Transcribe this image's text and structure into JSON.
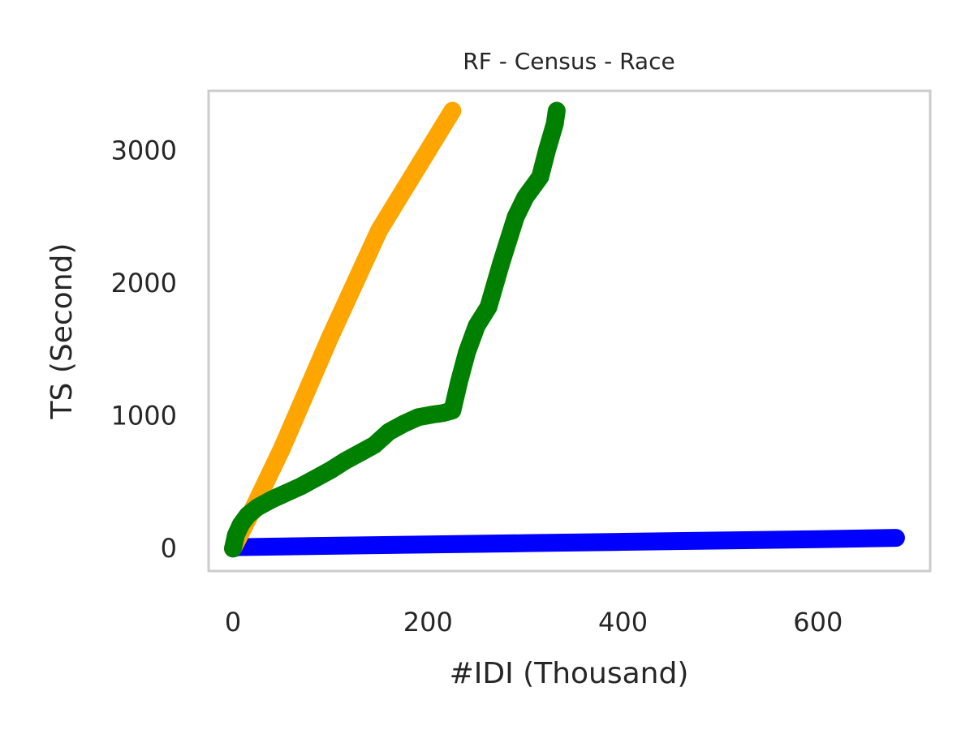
{
  "chart_data": {
    "type": "line",
    "title": "RF - Census - Race",
    "xlabel": "#IDI (Thousand)",
    "ylabel": "TS (Second)",
    "xlim": [
      -25,
      715
    ],
    "ylim": [
      -170,
      3450
    ],
    "xticks": [
      0,
      200,
      400,
      600
    ],
    "yticks": [
      0,
      1000,
      2000,
      3000
    ],
    "grid": false,
    "legend": "none",
    "series": [
      {
        "color": "#0000ff",
        "x": [
          0,
          5,
          100,
          200,
          300,
          400,
          500,
          600,
          680
        ],
        "y": [
          0,
          10,
          20,
          30,
          40,
          50,
          60,
          70,
          80
        ]
      },
      {
        "color": "#ffa500",
        "x": [
          0,
          20,
          50,
          100,
          150,
          200,
          225
        ],
        "y": [
          0,
          290,
          750,
          1600,
          2400,
          3000,
          3300
        ]
      },
      {
        "color": "#008000",
        "x": [
          0,
          3,
          8,
          15,
          25,
          40,
          55,
          70,
          85,
          100,
          115,
          130,
          145,
          160,
          175,
          190,
          205,
          215,
          225,
          232,
          240,
          250,
          262,
          275,
          290,
          300,
          315,
          322,
          330,
          332
        ],
        "y": [
          0,
          100,
          180,
          250,
          310,
          370,
          420,
          470,
          530,
          590,
          660,
          720,
          780,
          880,
          940,
          990,
          1010,
          1020,
          1040,
          1260,
          1480,
          1680,
          1820,
          2150,
          2500,
          2650,
          2800,
          3000,
          3200,
          3300
        ]
      }
    ]
  }
}
